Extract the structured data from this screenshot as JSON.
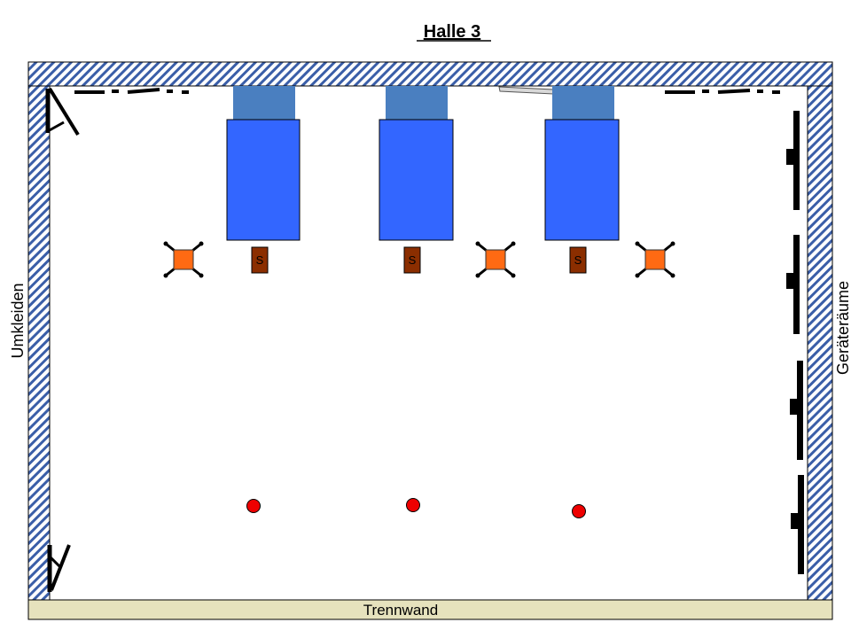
{
  "title": "Halle 3",
  "labels": {
    "left": "Umkleiden",
    "right": "Geräteräume",
    "bottom": "Trennwand"
  },
  "goals": [
    {
      "label": "S"
    },
    {
      "label": "S"
    },
    {
      "label": "S"
    }
  ],
  "colors": {
    "wall_hatch": "#3a5ea8",
    "partition": "#e6e2bd",
    "basket_board": "#4a7fc0",
    "mat": "#3366ff",
    "goal_marker": "#8b2e00",
    "equipment": "#ff6a13",
    "ball": "#ee0000"
  }
}
